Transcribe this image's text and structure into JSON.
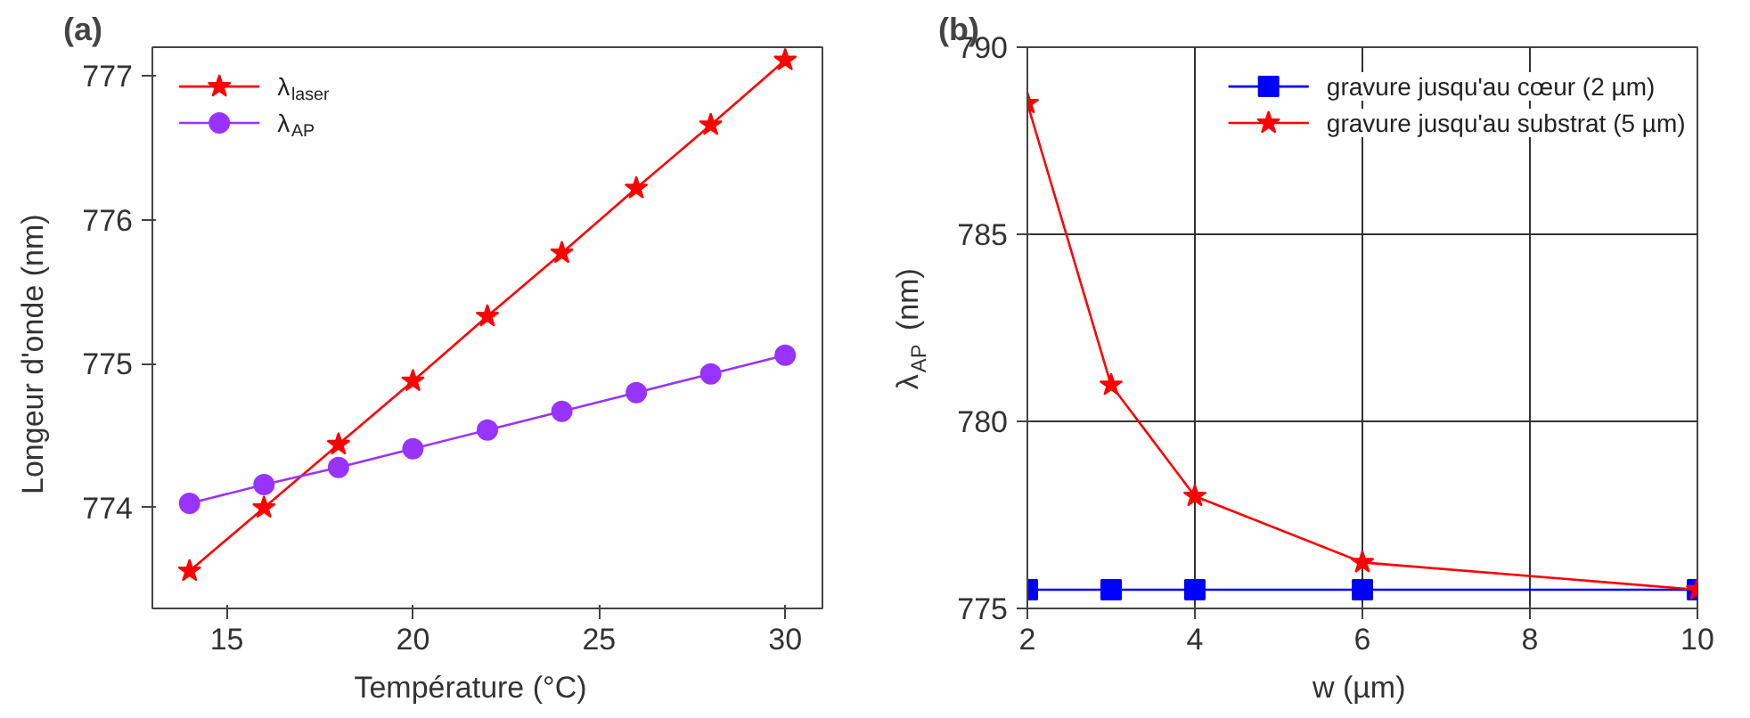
{
  "chart_data": [
    {
      "type": "line",
      "title": "(a)",
      "xlabel": "Température (°C)",
      "ylabel": "Longeur d'onde  (nm)",
      "xlim": [
        13,
        31
      ],
      "xticks": [
        15,
        20,
        25,
        30
      ],
      "ylim": [
        773.3,
        777.2
      ],
      "yticks": [
        774,
        775,
        776,
        777
      ],
      "grid": false,
      "legend": "top left",
      "x": [
        14,
        16,
        18,
        20,
        22,
        24,
        26,
        28,
        30
      ],
      "series": [
        {
          "name": "λ$_{laser}$",
          "color": "#ff0000",
          "marker": "star",
          "values": [
            773.56,
            774.0,
            774.44,
            774.88,
            775.33,
            775.77,
            776.22,
            776.66,
            777.11
          ]
        },
        {
          "name": "λ$_{AP}$",
          "color": "#9933ff",
          "marker": "circle",
          "values": [
            774.03,
            774.16,
            774.28,
            774.41,
            774.54,
            774.67,
            774.8,
            774.93,
            775.06
          ]
        }
      ]
    },
    {
      "type": "line",
      "title": "(b)",
      "xlabel": "w (µm)",
      "ylabel": "λ$_{AP}$ (nm)",
      "xlim": [
        2,
        10
      ],
      "xticks": [
        2,
        4,
        6,
        8,
        10
      ],
      "ylim": [
        775,
        790
      ],
      "yticks": [
        775,
        780,
        785,
        790
      ],
      "grid": true,
      "legend": "top right",
      "x": [
        2,
        3,
        4,
        6,
        10
      ],
      "series": [
        {
          "name": "gravure jusqu'au cœur (2 µm)",
          "color": "#0000ff",
          "marker": "square",
          "values": [
            775.5,
            775.5,
            775.5,
            775.5,
            775.5
          ]
        },
        {
          "name": "gravure jusqu'au substrat (5 µm)",
          "color": "#ff0000",
          "marker": "star",
          "values": [
            788.5,
            780.97,
            778.0,
            776.23,
            775.5
          ]
        }
      ]
    }
  ]
}
